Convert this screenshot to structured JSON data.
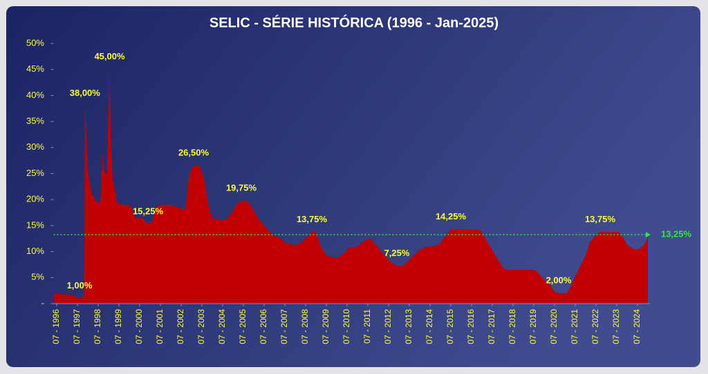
{
  "chart_data": {
    "type": "area",
    "title": "SELIC - SÉRIE HISTÓRICA (1996 - Jan-2025)",
    "xlim": [
      1996.35,
      2025.1
    ],
    "xticks": [
      {
        "value": 1996.5,
        "label": "07 - 1996"
      },
      {
        "value": 1997.5,
        "label": "07 - 1997"
      },
      {
        "value": 1998.5,
        "label": "07 - 1998"
      },
      {
        "value": 1999.5,
        "label": "07 - 1999"
      },
      {
        "value": 2000.5,
        "label": "07 - 2000"
      },
      {
        "value": 2001.5,
        "label": "07 - 2001"
      },
      {
        "value": 2002.5,
        "label": "07 - 2002"
      },
      {
        "value": 2003.5,
        "label": "07 - 2003"
      },
      {
        "value": 2004.5,
        "label": "07 - 2004"
      },
      {
        "value": 2005.5,
        "label": "07 - 2005"
      },
      {
        "value": 2006.5,
        "label": "07 - 2006"
      },
      {
        "value": 2007.5,
        "label": "07 - 2007"
      },
      {
        "value": 2008.5,
        "label": "07 - 2008"
      },
      {
        "value": 2009.5,
        "label": "07 - 2009"
      },
      {
        "value": 2010.5,
        "label": "07 - 2010"
      },
      {
        "value": 2011.5,
        "label": "07 - 2011"
      },
      {
        "value": 2012.5,
        "label": "07 - 2012"
      },
      {
        "value": 2013.5,
        "label": "07 - 2013"
      },
      {
        "value": 2014.5,
        "label": "07 - 2014"
      },
      {
        "value": 2015.5,
        "label": "07 - 2015"
      },
      {
        "value": 2016.5,
        "label": "07 - 2016"
      },
      {
        "value": 2017.5,
        "label": "07 - 2017"
      },
      {
        "value": 2018.5,
        "label": "07 - 2018"
      },
      {
        "value": 2019.5,
        "label": "07 - 2019"
      },
      {
        "value": 2020.5,
        "label": "07 - 2020"
      },
      {
        "value": 2021.5,
        "label": "07 - 2021"
      },
      {
        "value": 2022.5,
        "label": "07 - 2022"
      },
      {
        "value": 2023.5,
        "label": "07 - 2023"
      },
      {
        "value": 2024.5,
        "label": "07 - 2024"
      }
    ],
    "ylim": [
      0,
      50
    ],
    "yticks": [
      {
        "value": 0,
        "label": "-"
      },
      {
        "value": 5,
        "label": "5%"
      },
      {
        "value": 10,
        "label": "10%"
      },
      {
        "value": 15,
        "label": "15%"
      },
      {
        "value": 20,
        "label": "20%"
      },
      {
        "value": 25,
        "label": "25%"
      },
      {
        "value": 30,
        "label": "30%"
      },
      {
        "value": 35,
        "label": "35%"
      },
      {
        "value": 40,
        "label": "40%"
      },
      {
        "value": 45,
        "label": "45%"
      },
      {
        "value": 50,
        "label": "50%"
      }
    ],
    "series": [
      {
        "color": "#c00000",
        "x": [
          1996.37,
          1996.7,
          1997.0,
          1997.3,
          1997.6,
          1997.83,
          1997.86,
          1997.92,
          1997.97,
          1998.05,
          1998.2,
          1998.4,
          1998.6,
          1998.72,
          1998.8,
          1998.92,
          1999.05,
          1999.12,
          1999.2,
          1999.4,
          1999.6,
          1999.9,
          2000.1,
          2000.3,
          2000.6,
          2000.9,
          2001.1,
          2001.3,
          2001.5,
          2002.0,
          2002.3,
          2002.7,
          2002.8,
          2002.9,
          2003.1,
          2003.4,
          2003.6,
          2003.8,
          2004.0,
          2004.4,
          2004.7,
          2004.9,
          2005.2,
          2005.4,
          2005.7,
          2005.9,
          2006.2,
          2006.5,
          2006.9,
          2007.3,
          2007.6,
          2008.0,
          2008.3,
          2008.6,
          2008.8,
          2009.0,
          2009.2,
          2009.5,
          2010.0,
          2010.3,
          2010.6,
          2010.9,
          2011.3,
          2011.6,
          2011.9,
          2012.2,
          2012.6,
          2012.9,
          2013.2,
          2013.5,
          2013.9,
          2014.2,
          2014.6,
          2014.9,
          2015.2,
          2015.5,
          2016.8,
          2017.0,
          2017.2,
          2017.5,
          2017.8,
          2018.0,
          2018.2,
          2019.5,
          2019.7,
          2019.9,
          2020.1,
          2020.3,
          2020.5,
          2020.7,
          2021.1,
          2021.3,
          2021.5,
          2021.8,
          2022.0,
          2022.2,
          2022.5,
          2022.7,
          2023.6,
          2023.8,
          2024.0,
          2024.3,
          2024.6,
          2024.8,
          2024.95,
          2025.0
        ],
        "values": [
          1.9,
          1.8,
          1.7,
          1.6,
          1.0,
          1.5,
          38,
          34,
          28,
          24,
          21,
          19.5,
          19.5,
          29,
          25,
          25,
          45,
          30,
          24,
          19.5,
          19,
          19,
          18.5,
          16.5,
          16.5,
          15.25,
          15.75,
          18.5,
          19,
          19,
          18.5,
          18,
          22,
          25,
          26.5,
          26.5,
          24,
          19,
          16.5,
          16,
          16.25,
          17.25,
          19.25,
          19.75,
          19.75,
          18.5,
          16.5,
          15,
          13.25,
          12.5,
          11.5,
          11.25,
          11.75,
          13,
          13.75,
          13.75,
          11.25,
          9.25,
          8.75,
          9.5,
          10.75,
          10.75,
          12,
          12.5,
          11.25,
          9.75,
          8,
          7.25,
          7.25,
          8.5,
          10,
          10.75,
          11,
          11.25,
          12.75,
          14.25,
          14.25,
          13.75,
          12.25,
          10.25,
          8.25,
          7,
          6.5,
          6.5,
          6,
          5,
          4.25,
          3.5,
          2.25,
          2,
          2,
          3.5,
          5.25,
          7.75,
          9.25,
          11.75,
          13.25,
          13.75,
          13.75,
          12.75,
          11.25,
          10.5,
          10.5,
          11.25,
          12.25,
          13.25
        ],
        "value_labels": [
          null,
          null,
          null,
          null,
          "1,00%",
          null,
          "38,00%",
          null,
          null,
          null,
          null,
          null,
          null,
          null,
          null,
          null,
          "45,00%",
          null,
          null,
          null,
          null,
          null,
          null,
          null,
          null,
          "15,25%",
          null,
          null,
          null,
          null,
          null,
          null,
          null,
          null,
          "26,50%",
          null,
          null,
          null,
          null,
          null,
          null,
          null,
          null,
          "19,75%",
          null,
          null,
          null,
          null,
          null,
          null,
          null,
          null,
          null,
          null,
          "13,75%",
          null,
          null,
          null,
          null,
          null,
          null,
          null,
          null,
          null,
          null,
          null,
          null,
          "7,25%",
          null,
          null,
          null,
          null,
          null,
          null,
          null,
          "14,25%",
          null,
          null,
          null,
          null,
          null,
          null,
          null,
          null,
          null,
          null,
          null,
          null,
          null,
          "2,00%",
          null,
          null,
          null,
          null,
          null,
          null,
          null,
          "13,75%",
          null,
          null,
          null,
          null,
          null,
          null,
          null,
          null
        ]
      }
    ],
    "reference_line": {
      "value": 13.25,
      "label": "13,25%",
      "color": "#2ee84a"
    }
  }
}
